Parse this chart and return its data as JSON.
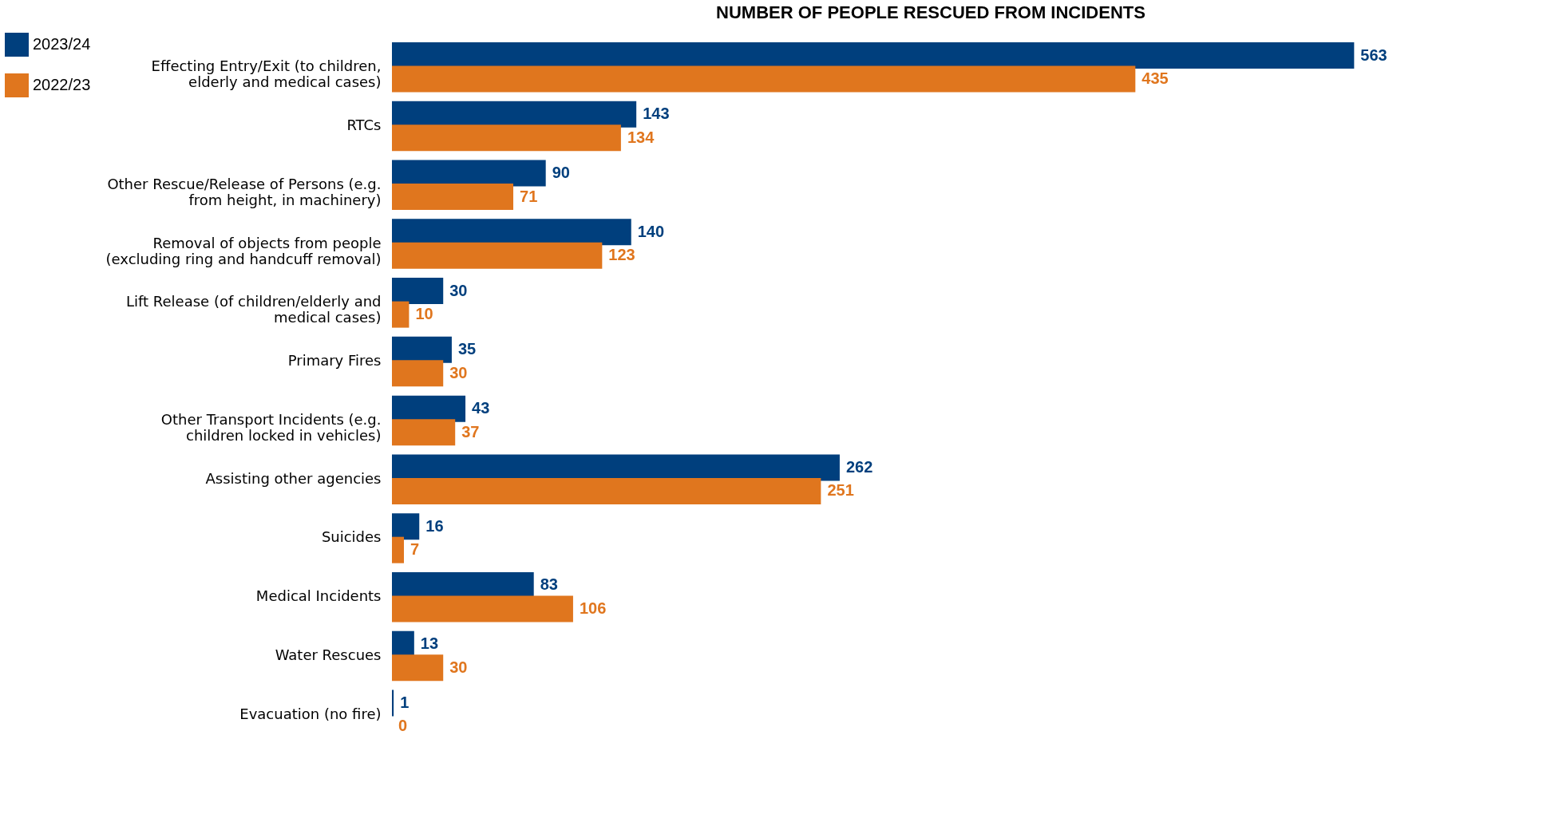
{
  "chart_data": {
    "type": "bar",
    "orientation": "horizontal",
    "title": "NUMBER OF PEOPLE RESCUED FROM INCIDENTS",
    "categories": [
      "Effecting Entry/Exit (to children, elderly and medical cases)",
      "RTCs",
      "Other Rescue/Release of Persons (e.g. from height, in machinery)",
      "Removal of objects from people (excluding ring and handcuff removal)",
      "Lift Release (of children/elderly and medical cases)",
      "Primary Fires",
      "Other Transport Incidents (e.g. children locked in vehicles)",
      "Assisting other agencies",
      "Suicides",
      "Medical Incidents",
      "Water Rescues",
      "Evacuation (no fire)"
    ],
    "series": [
      {
        "name": "2023/24",
        "color": "#003f7d",
        "values": [
          563,
          143,
          90,
          140,
          30,
          35,
          43,
          262,
          16,
          83,
          13,
          1
        ]
      },
      {
        "name": "2022/23",
        "color": "#e0761e",
        "values": [
          435,
          134,
          71,
          123,
          10,
          30,
          37,
          251,
          7,
          106,
          30,
          0
        ]
      }
    ],
    "data_labels": true,
    "legend": "left",
    "grid": false
  }
}
